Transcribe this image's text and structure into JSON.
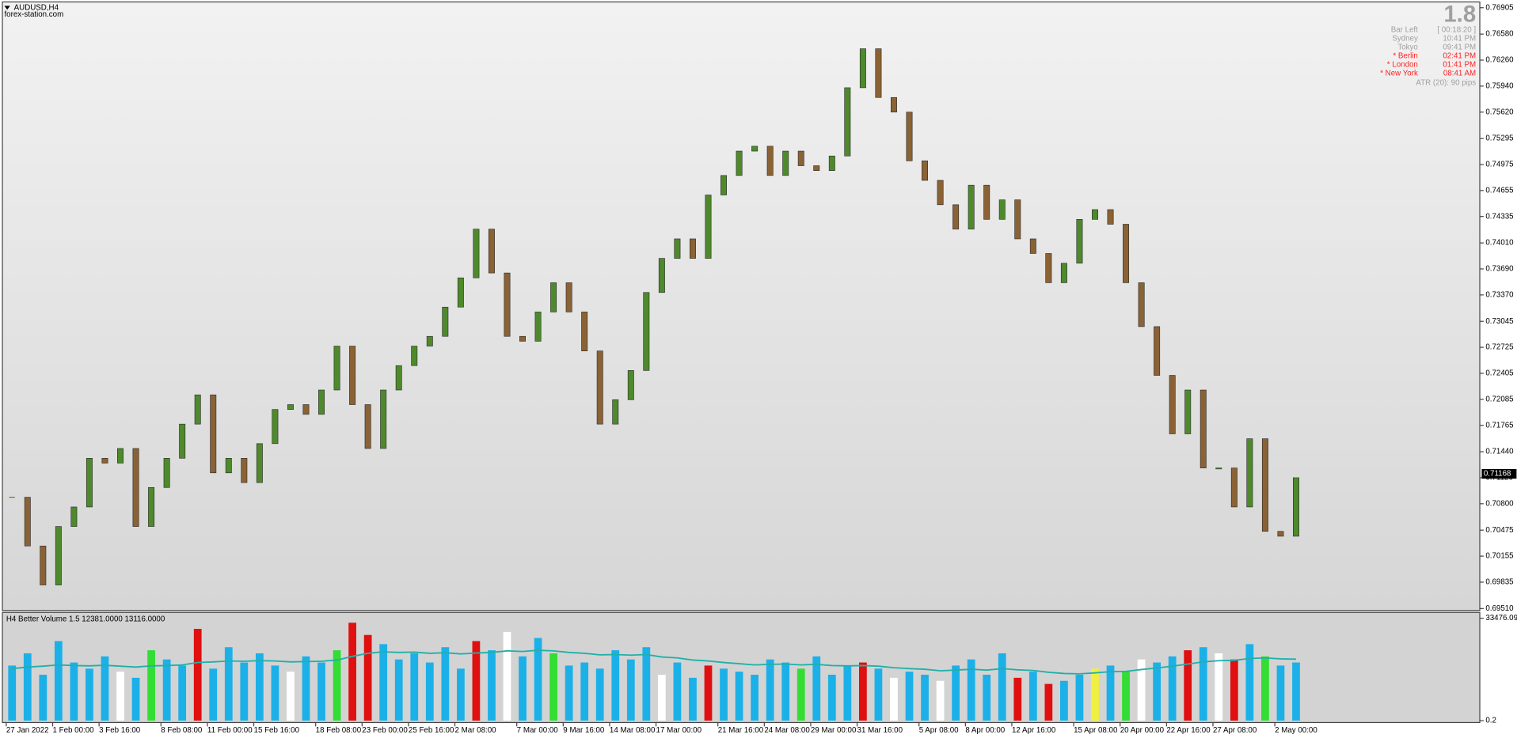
{
  "header": {
    "symbol": "AUDUSD,H4",
    "source": "forex-station.com"
  },
  "info": {
    "spread": "1.8",
    "rows": [
      {
        "label": "Bar Left",
        "value": "[ 00:18:20 ]",
        "color": "#a0a0a0"
      },
      {
        "label": "Sydney",
        "value": "10:41 PM",
        "color": "#a0a0a0"
      },
      {
        "label": "Tokyo",
        "value": "09:41 PM",
        "color": "#a0a0a0"
      },
      {
        "label": "* Berlin",
        "value": "02:41 PM",
        "color": "#ff2020"
      },
      {
        "label": "* London",
        "value": "01:41 PM",
        "color": "#ff2020"
      },
      {
        "label": "* New York",
        "value": "08:41 AM",
        "color": "#ff2020"
      }
    ],
    "atr": "ATR (20): 90 pips"
  },
  "chart_data": [
    {
      "type": "candlestick",
      "categories": [
        "27 Jan 2022",
        null,
        null,
        "1 Feb 00:00",
        null,
        null,
        "3 Feb 16:00",
        null,
        null,
        null,
        "8 Feb 08:00",
        null,
        null,
        "11 Feb 00:00",
        null,
        null,
        "15 Feb 16:00",
        null,
        null,
        null,
        "18 Feb 08:00",
        null,
        null,
        "23 Feb 00:00",
        null,
        null,
        "25 Feb 16:00",
        null,
        null,
        "2 Mar 08:00",
        null,
        null,
        null,
        "7 Mar 00:00",
        null,
        null,
        "9 Mar 16:00",
        null,
        null,
        "14 Mar 08:00",
        null,
        null,
        "17 Mar 00:00",
        null,
        null,
        null,
        "21 Mar 16:00",
        null,
        null,
        "24 Mar 08:00",
        null,
        null,
        "29 Mar 00:00",
        null,
        null,
        "31 Mar 16:00",
        null,
        null,
        null,
        "5 Apr 08:00",
        null,
        null,
        "8 Apr 00:00",
        null,
        null,
        "12 Apr 16:00",
        null,
        null,
        null,
        "15 Apr 08:00",
        null,
        null,
        "20 Apr 00:00",
        null,
        null,
        "22 Apr 16:00",
        null,
        null,
        "27 Apr 08:00",
        null,
        null,
        null,
        "2 May 00:00",
        null
      ],
      "values": [
        0.7088,
        0.7028,
        0.698,
        0.7052,
        0.7076,
        0.7136,
        0.713,
        0.7148,
        0.7052,
        0.71,
        0.7136,
        0.7178,
        0.7214,
        0.7118,
        0.7136,
        0.7106,
        0.7154,
        0.7196,
        0.7202,
        0.719,
        0.722,
        0.7274,
        0.7202,
        0.7148,
        0.722,
        0.725,
        0.7274,
        0.7286,
        0.7322,
        0.7358,
        0.7418,
        0.7364,
        0.7286,
        0.728,
        0.7316,
        0.7352,
        0.7316,
        0.7268,
        0.7178,
        0.7208,
        0.7244,
        0.734,
        0.7382,
        0.7406,
        0.7382,
        0.746,
        0.7484,
        0.7514,
        0.752,
        0.7484,
        0.7514,
        0.7496,
        0.749,
        0.7508,
        0.7592,
        0.764,
        0.758,
        0.7562,
        0.7502,
        0.7478,
        0.7448,
        0.7418,
        0.7472,
        0.743,
        0.7454,
        0.7406,
        0.7388,
        0.7352,
        0.7376,
        0.743,
        0.7442,
        0.7424,
        0.7352,
        0.7298,
        0.7238,
        0.7166,
        0.722,
        0.7124,
        0.7124,
        0.7076,
        0.716,
        0.7046,
        0.704,
        0.7112
      ],
      "up_color": "#4e8a2c",
      "down_color": "#8a6234",
      "current_price": 0.71168,
      "ylim": [
        0.69486,
        0.76976
      ],
      "yticks": [
        {
          "value": 0.76905,
          "label": "0.76905"
        },
        {
          "value": 0.7658,
          "label": "0.76580"
        },
        {
          "value": 0.7626,
          "label": "0.76260"
        },
        {
          "value": 0.7594,
          "label": "0.75940"
        },
        {
          "value": 0.7562,
          "label": "0.75620"
        },
        {
          "value": 0.75295,
          "label": "0.75295"
        },
        {
          "value": 0.74975,
          "label": "0.74975"
        },
        {
          "value": 0.74655,
          "label": "0.74655"
        },
        {
          "value": 0.74335,
          "label": "0.74335"
        },
        {
          "value": 0.7401,
          "label": "0.74010"
        },
        {
          "value": 0.7369,
          "label": "0.73690"
        },
        {
          "value": 0.7337,
          "label": "0.73370"
        },
        {
          "value": 0.73045,
          "label": "0.73045"
        },
        {
          "value": 0.72725,
          "label": "0.72725"
        },
        {
          "value": 0.72405,
          "label": "0.72405"
        },
        {
          "value": 0.72085,
          "label": "0.72085"
        },
        {
          "value": 0.71765,
          "label": "0.71765"
        },
        {
          "value": 0.7144,
          "label": "0.71440"
        },
        {
          "value": 0.7112,
          "label": "0.71120"
        },
        {
          "value": 0.708,
          "label": "0.70800"
        },
        {
          "value": 0.70475,
          "label": "0.70475"
        },
        {
          "value": 0.70155,
          "label": "0.70155"
        },
        {
          "value": 0.69835,
          "label": "0.69835"
        },
        {
          "value": 0.6951,
          "label": "0.69510"
        }
      ]
    },
    {
      "type": "volume",
      "title": "H4 Better Volume 1.5 12381.0000 13116.0000",
      "values": [
        18000,
        22000,
        15000,
        26000,
        19000,
        17000,
        21000,
        16000,
        14000,
        23000,
        20000,
        18000,
        30000,
        17000,
        24000,
        19000,
        22000,
        18000,
        16000,
        21000,
        19000,
        23000,
        32000,
        28000,
        25000,
        20000,
        22000,
        19000,
        24000,
        17000,
        26000,
        23000,
        29000,
        21000,
        27000,
        22000,
        18000,
        19000,
        17000,
        23000,
        20000,
        24000,
        15000,
        19000,
        14000,
        18000,
        17000,
        16000,
        15000,
        20000,
        19000,
        17000,
        21000,
        15000,
        18000,
        19000,
        17000,
        14000,
        16000,
        15000,
        13000,
        18000,
        20000,
        15000,
        22000,
        14000,
        16000,
        12000,
        13000,
        15000,
        17000,
        18000,
        16000,
        20000,
        19000,
        21000,
        23000,
        24000,
        22000,
        20000,
        25000,
        21000,
        18000,
        19000
      ],
      "colors": [
        "#1cb0e8",
        "#1cb0e8",
        "#1cb0e8",
        "#1cb0e8",
        "#1cb0e8",
        "#1cb0e8",
        "#1cb0e8",
        "#ffffff",
        "#1cb0e8",
        "#33dd33",
        "#1cb0e8",
        "#1cb0e8",
        "#e01010",
        "#1cb0e8",
        "#1cb0e8",
        "#1cb0e8",
        "#1cb0e8",
        "#1cb0e8",
        "#ffffff",
        "#1cb0e8",
        "#1cb0e8",
        "#33dd33",
        "#e01010",
        "#e01010",
        "#1cb0e8",
        "#1cb0e8",
        "#1cb0e8",
        "#1cb0e8",
        "#1cb0e8",
        "#1cb0e8",
        "#e01010",
        "#1cb0e8",
        "#ffffff",
        "#1cb0e8",
        "#1cb0e8",
        "#33dd33",
        "#1cb0e8",
        "#1cb0e8",
        "#1cb0e8",
        "#1cb0e8",
        "#1cb0e8",
        "#1cb0e8",
        "#ffffff",
        "#1cb0e8",
        "#1cb0e8",
        "#e01010",
        "#1cb0e8",
        "#1cb0e8",
        "#1cb0e8",
        "#1cb0e8",
        "#1cb0e8",
        "#33dd33",
        "#1cb0e8",
        "#1cb0e8",
        "#1cb0e8",
        "#e01010",
        "#1cb0e8",
        "#ffffff",
        "#1cb0e8",
        "#1cb0e8",
        "#ffffff",
        "#1cb0e8",
        "#1cb0e8",
        "#1cb0e8",
        "#1cb0e8",
        "#e01010",
        "#1cb0e8",
        "#e01010",
        "#1cb0e8",
        "#1cb0e8",
        "#f0f040",
        "#1cb0e8",
        "#33dd33",
        "#ffffff",
        "#1cb0e8",
        "#1cb0e8",
        "#e01010",
        "#1cb0e8",
        "#ffffff",
        "#e01010",
        "#1cb0e8",
        "#33dd33",
        "#1cb0e8",
        "#1cb0e8"
      ],
      "ma": [
        17000,
        17500,
        17800,
        18200,
        18000,
        17900,
        18100,
        17800,
        17500,
        17900,
        18000,
        18200,
        19000,
        19200,
        19500,
        19400,
        19600,
        19500,
        19200,
        19300,
        19400,
        19800,
        21000,
        22000,
        22500,
        22300,
        22400,
        22000,
        22200,
        21800,
        22100,
        22300,
        22800,
        22600,
        23000,
        22800,
        22300,
        22000,
        21500,
        21600,
        21400,
        21600,
        20800,
        20500,
        19800,
        19500,
        19000,
        18600,
        18200,
        18400,
        18500,
        18200,
        18400,
        18000,
        17900,
        18000,
        17800,
        17300,
        17000,
        16800,
        16300,
        16500,
        16800,
        16500,
        17000,
        16600,
        16400,
        15800,
        15400,
        15300,
        15600,
        16000,
        16100,
        16700,
        17200,
        17800,
        18500,
        19200,
        19600,
        19700,
        20300,
        20500,
        20200,
        20100
      ],
      "ma_color": "#20b0a8",
      "ylim": [
        0.2,
        33476.09
      ],
      "yticks": [
        0.2,
        33476.09
      ]
    }
  ]
}
